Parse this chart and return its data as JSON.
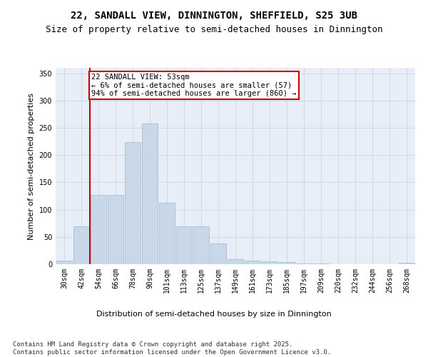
{
  "title_line1": "22, SANDALL VIEW, DINNINGTON, SHEFFIELD, S25 3UB",
  "title_line2": "Size of property relative to semi-detached houses in Dinnington",
  "xlabel": "Distribution of semi-detached houses by size in Dinnington",
  "ylabel": "Number of semi-detached properties",
  "categories": [
    "30sqm",
    "42sqm",
    "54sqm",
    "66sqm",
    "78sqm",
    "90sqm",
    "101sqm",
    "113sqm",
    "125sqm",
    "137sqm",
    "149sqm",
    "161sqm",
    "173sqm",
    "185sqm",
    "197sqm",
    "209sqm",
    "220sqm",
    "232sqm",
    "244sqm",
    "256sqm",
    "268sqm"
  ],
  "values": [
    7,
    70,
    127,
    127,
    224,
    258,
    112,
    70,
    70,
    38,
    9,
    7,
    5,
    4,
    1,
    1,
    0,
    0,
    0,
    0,
    2
  ],
  "bar_color": "#c8d8e8",
  "bar_edge_color": "#a0b8cc",
  "highlight_color": "#cc0000",
  "annotation_text": "22 SANDALL VIEW: 53sqm\n← 6% of semi-detached houses are smaller (57)\n94% of semi-detached houses are larger (860) →",
  "annotation_box_color": "#ffffff",
  "annotation_box_edge_color": "#cc0000",
  "ylim": [
    0,
    360
  ],
  "yticks": [
    0,
    50,
    100,
    150,
    200,
    250,
    300,
    350
  ],
  "grid_color": "#d0d8e8",
  "background_color": "#e8eef8",
  "footnote": "Contains HM Land Registry data © Crown copyright and database right 2025.\nContains public sector information licensed under the Open Government Licence v3.0.",
  "title_fontsize": 10,
  "subtitle_fontsize": 9,
  "axis_label_fontsize": 8,
  "tick_fontsize": 7,
  "annotation_fontsize": 7.5,
  "footnote_fontsize": 6.5
}
